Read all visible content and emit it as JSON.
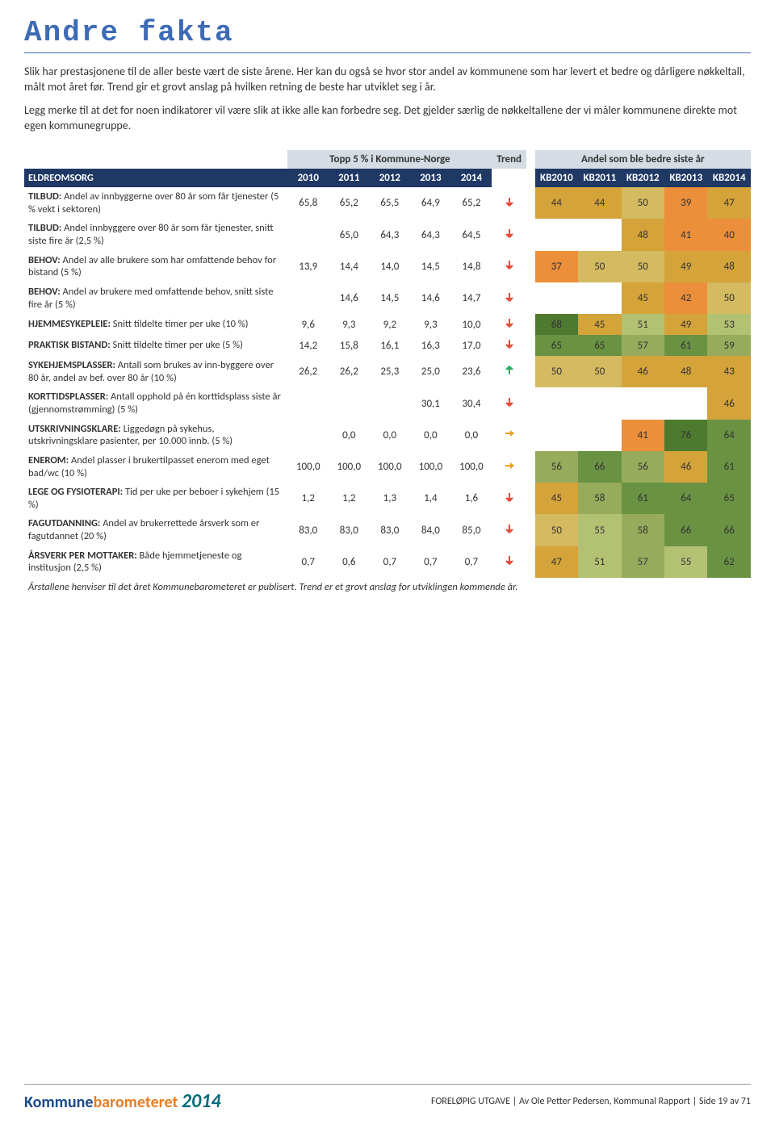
{
  "title": "Andre fakta",
  "intro": {
    "p1": "Slik har prestasjonene til de aller beste vært de siste årene. Her kan du også se hvor stor andel av kommunene som har levert et bedre og dårligere nøkkeltall, målt mot året før. Trend gir et grovt anslag på hvilken retning de beste har utviklet seg i år.",
    "p2": "Legg merke til at det for noen indikatorer vil være slik at ikke alle kan forbedre seg. Det gjelder særlig de nøkkeltallene der vi måler kommunene direkte mot egen kommunegruppe."
  },
  "headers": {
    "top5": "Topp 5 % i Kommune-Norge",
    "trend": "Trend",
    "andel": "Andel som ble bedre siste år",
    "section": "ELDREOMSORG",
    "years": [
      "2010",
      "2011",
      "2012",
      "2013",
      "2014"
    ],
    "kb_years": [
      "KB2010",
      "KB2011",
      "KB2012",
      "KB2013",
      "KB2014"
    ]
  },
  "rows": [
    {
      "bold": "TILBUD:",
      "label": " Andel av innbyggerne over 80 år som får tjenester (5 % vekt i sektoren)",
      "vals": [
        "65,8",
        "65,2",
        "65,5",
        "64,9",
        "65,2"
      ],
      "trend": "down",
      "andel": [
        {
          "v": "44",
          "c": "#d4a33a"
        },
        {
          "v": "44",
          "c": "#d4a33a"
        },
        {
          "v": "50",
          "c": "#d4ba60"
        },
        {
          "v": "39",
          "c": "#eb8f3a"
        },
        {
          "v": "47",
          "c": "#d4a33a"
        }
      ]
    },
    {
      "bold": "TILBUD:",
      "label": " Andel innbyggere over 80 år som får tjenester, snitt siste fire år (2,5 %)",
      "vals": [
        "",
        "65,0",
        "64,3",
        "64,3",
        "64,5"
      ],
      "trend": "down",
      "andel": [
        {
          "v": "",
          "c": ""
        },
        {
          "v": "",
          "c": ""
        },
        {
          "v": "48",
          "c": "#d4a33a"
        },
        {
          "v": "41",
          "c": "#eb8f3a"
        },
        {
          "v": "40",
          "c": "#eb8f3a"
        }
      ]
    },
    {
      "bold": "BEHOV:",
      "label": " Andel av alle brukere som har omfattende behov for bistand (5 %)",
      "vals": [
        "13,9",
        "14,4",
        "14,0",
        "14,5",
        "14,8"
      ],
      "trend": "down",
      "andel": [
        {
          "v": "37",
          "c": "#eb8f3a"
        },
        {
          "v": "50",
          "c": "#d4ba60"
        },
        {
          "v": "50",
          "c": "#d4ba60"
        },
        {
          "v": "49",
          "c": "#d4a33a"
        },
        {
          "v": "48",
          "c": "#d4a33a"
        }
      ]
    },
    {
      "bold": "BEHOV:",
      "label": " Andel av brukere med omfattende behov, snitt siste fire år (5 %)",
      "vals": [
        "",
        "14,6",
        "14,5",
        "14,6",
        "14,7"
      ],
      "trend": "down",
      "andel": [
        {
          "v": "",
          "c": ""
        },
        {
          "v": "",
          "c": ""
        },
        {
          "v": "45",
          "c": "#d4a33a"
        },
        {
          "v": "42",
          "c": "#eb8f3a"
        },
        {
          "v": "50",
          "c": "#d4ba60"
        }
      ]
    },
    {
      "bold": "HJEMMESYKEPLEIE:",
      "label": " Snitt tildelte timer per uke (10 %)",
      "vals": [
        "9,6",
        "9,3",
        "9,2",
        "9,3",
        "10,0"
      ],
      "trend": "down",
      "andel": [
        {
          "v": "68",
          "c": "#4e7a2f"
        },
        {
          "v": "45",
          "c": "#d4a33a"
        },
        {
          "v": "51",
          "c": "#b3c172"
        },
        {
          "v": "49",
          "c": "#d4a33a"
        },
        {
          "v": "53",
          "c": "#b3c172"
        }
      ]
    },
    {
      "bold": "PRAKTISK BISTAND:",
      "label": " Snitt tildelte timer per uke (5 %)",
      "vals": [
        "14,2",
        "15,8",
        "16,1",
        "16,3",
        "17,0"
      ],
      "trend": "down",
      "andel": [
        {
          "v": "65",
          "c": "#6a9243"
        },
        {
          "v": "65",
          "c": "#6a9243"
        },
        {
          "v": "57",
          "c": "#97ab5c"
        },
        {
          "v": "61",
          "c": "#6a9243"
        },
        {
          "v": "59",
          "c": "#97ab5c"
        }
      ]
    },
    {
      "bold": "SYKEHJEMSPLASSER:",
      "label": " Antall som brukes av inn-byggere over 80 år, andel av bef. over 80 år (10 %)",
      "vals": [
        "26,2",
        "26,2",
        "25,3",
        "25,0",
        "23,6"
      ],
      "trend": "up",
      "andel": [
        {
          "v": "50",
          "c": "#d4ba60"
        },
        {
          "v": "50",
          "c": "#d4ba60"
        },
        {
          "v": "46",
          "c": "#d4a33a"
        },
        {
          "v": "48",
          "c": "#d4a33a"
        },
        {
          "v": "43",
          "c": "#d4a33a"
        }
      ]
    },
    {
      "bold": "KORTTIDSPLASSER:",
      "label": " Antall opphold på én korttidsplass siste år (gjennomstrømming) (5 %)",
      "vals": [
        "",
        "",
        "",
        "30,1",
        "30,4"
      ],
      "trend": "down",
      "andel": [
        {
          "v": "",
          "c": ""
        },
        {
          "v": "",
          "c": ""
        },
        {
          "v": "",
          "c": ""
        },
        {
          "v": "",
          "c": ""
        },
        {
          "v": "46",
          "c": "#d4a33a"
        }
      ]
    },
    {
      "bold": "UTSKRIVNINGSKLARE:",
      "label": " Liggedøgn på sykehus, utskrivningsklare pasienter, per 10.000 innb. (5 %)",
      "vals": [
        "",
        "0,0",
        "0,0",
        "0,0",
        "0,0"
      ],
      "trend": "right",
      "andel": [
        {
          "v": "",
          "c": ""
        },
        {
          "v": "",
          "c": ""
        },
        {
          "v": "41",
          "c": "#eb8f3a"
        },
        {
          "v": "76",
          "c": "#4e7a2f"
        },
        {
          "v": "64",
          "c": "#6a9243"
        }
      ]
    },
    {
      "bold": "ENEROM:",
      "label": " Andel plasser i brukertilpasset enerom med eget bad/wc (10 %)",
      "vals": [
        "100,0",
        "100,0",
        "100,0",
        "100,0",
        "100,0"
      ],
      "trend": "right",
      "andel": [
        {
          "v": "56",
          "c": "#97ab5c"
        },
        {
          "v": "66",
          "c": "#6a9243"
        },
        {
          "v": "56",
          "c": "#97ab5c"
        },
        {
          "v": "46",
          "c": "#d4a33a"
        },
        {
          "v": "61",
          "c": "#6a9243"
        }
      ]
    },
    {
      "bold": "LEGE OG FYSIOTERAPI:",
      "label": " Tid per uke per beboer i sykehjem (15 %)",
      "vals": [
        "1,2",
        "1,2",
        "1,3",
        "1,4",
        "1,6"
      ],
      "trend": "down",
      "andel": [
        {
          "v": "45",
          "c": "#d4a33a"
        },
        {
          "v": "58",
          "c": "#97ab5c"
        },
        {
          "v": "61",
          "c": "#6a9243"
        },
        {
          "v": "64",
          "c": "#6a9243"
        },
        {
          "v": "65",
          "c": "#6a9243"
        }
      ]
    },
    {
      "bold": "FAGUTDANNING:",
      "label": " Andel av brukerrettede årsverk som er fagutdannet (20 %)",
      "vals": [
        "83,0",
        "83,0",
        "83,0",
        "84,0",
        "85,0"
      ],
      "trend": "down",
      "andel": [
        {
          "v": "50",
          "c": "#d4ba60"
        },
        {
          "v": "55",
          "c": "#b3c172"
        },
        {
          "v": "58",
          "c": "#97ab5c"
        },
        {
          "v": "66",
          "c": "#6a9243"
        },
        {
          "v": "66",
          "c": "#6a9243"
        }
      ]
    },
    {
      "bold": "ÅRSVERK PER MOTTAKER:",
      "label": " Både hjemmetjeneste og institusjon (2,5 %)",
      "vals": [
        "0,7",
        "0,6",
        "0,7",
        "0,7",
        "0,7"
      ],
      "trend": "down",
      "andel": [
        {
          "v": "47",
          "c": "#d4a33a"
        },
        {
          "v": "51",
          "c": "#b3c172"
        },
        {
          "v": "57",
          "c": "#97ab5c"
        },
        {
          "v": "55",
          "c": "#b3c172"
        },
        {
          "v": "62",
          "c": "#6a9243"
        }
      ]
    }
  ],
  "footnote": "Årstallene henviser til det året Kommunebarometeret er publisert. Trend er et grovt anslag for utviklingen kommende år.",
  "footer": {
    "logo_a": "Kommune",
    "logo_b": "barometeret",
    "logo_year": "2014",
    "text": "FORELØPIG UTGAVE | Av Ole Petter Pedersen, Kommunal Rapport | Side 19 av 71"
  },
  "trend_colors": {
    "down_fill": "#e74c3c",
    "up_fill": "#27ae60",
    "right_fill": "#f39c12"
  }
}
